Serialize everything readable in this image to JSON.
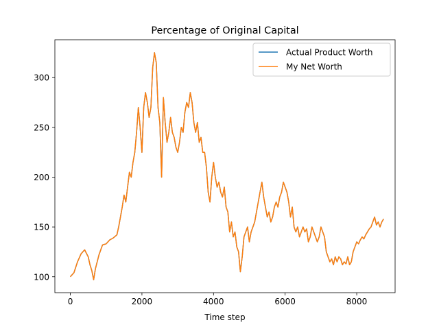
{
  "chart_data": {
    "type": "line",
    "title": "Percentage of Original Capital",
    "xlabel": "Time step",
    "ylabel": "",
    "xlim": [
      -432,
      9072
    ],
    "ylim": [
      84,
      338
    ],
    "xticks": [
      0,
      2000,
      4000,
      6000,
      8000
    ],
    "yticks": [
      100,
      150,
      200,
      250,
      300
    ],
    "grid": false,
    "legend_position": "top-right",
    "series": [
      {
        "name": "Actual Product Worth",
        "color": "#1f77b4",
        "x": [
          0,
          100,
          200,
          300,
          400,
          500,
          550,
          600,
          650,
          700,
          800,
          900,
          1000,
          1100,
          1200,
          1300,
          1350,
          1400,
          1450,
          1500,
          1550,
          1600,
          1650,
          1700,
          1750,
          1800,
          1850,
          1900,
          1950,
          2000,
          2050,
          2100,
          2150,
          2200,
          2250,
          2300,
          2350,
          2400,
          2450,
          2500,
          2550,
          2600,
          2650,
          2700,
          2750,
          2800,
          2850,
          2900,
          2950,
          3000,
          3050,
          3100,
          3150,
          3200,
          3250,
          3300,
          3350,
          3400,
          3450,
          3500,
          3550,
          3600,
          3650,
          3700,
          3750,
          3800,
          3850,
          3900,
          3950,
          4000,
          4050,
          4100,
          4150,
          4200,
          4250,
          4300,
          4350,
          4400,
          4450,
          4500,
          4550,
          4600,
          4650,
          4700,
          4750,
          4800,
          4850,
          4900,
          4950,
          5000,
          5050,
          5100,
          5150,
          5200,
          5250,
          5300,
          5350,
          5400,
          5450,
          5500,
          5550,
          5600,
          5650,
          5700,
          5750,
          5800,
          5850,
          5900,
          5950,
          6000,
          6050,
          6100,
          6150,
          6200,
          6250,
          6300,
          6350,
          6400,
          6450,
          6500,
          6550,
          6600,
          6650,
          6700,
          6750,
          6800,
          6850,
          6900,
          6950,
          7000,
          7050,
          7100,
          7150,
          7200,
          7250,
          7300,
          7350,
          7400,
          7450,
          7500,
          7550,
          7600,
          7650,
          7700,
          7750,
          7800,
          7850,
          7900,
          7950,
          8000,
          8050,
          8100,
          8150,
          8200,
          8250,
          8300,
          8350,
          8400,
          8450,
          8500,
          8550,
          8600,
          8650,
          8700,
          8750
        ],
        "values": [
          100,
          104,
          115,
          123,
          127,
          120,
          112,
          106,
          97,
          108,
          122,
          132,
          133,
          137,
          139,
          142,
          150,
          160,
          170,
          182,
          175,
          190,
          205,
          200,
          215,
          225,
          245,
          270,
          250,
          225,
          270,
          285,
          275,
          260,
          270,
          310,
          325,
          315,
          270,
          255,
          200,
          280,
          255,
          235,
          245,
          260,
          245,
          240,
          230,
          225,
          235,
          250,
          245,
          265,
          275,
          270,
          285,
          275,
          255,
          245,
          255,
          235,
          240,
          225,
          225,
          210,
          185,
          175,
          200,
          215,
          200,
          190,
          195,
          185,
          180,
          190,
          170,
          165,
          145,
          155,
          140,
          145,
          130,
          125,
          105,
          120,
          140,
          145,
          150,
          135,
          145,
          150,
          155,
          165,
          175,
          185,
          195,
          180,
          170,
          160,
          165,
          155,
          160,
          170,
          175,
          170,
          180,
          185,
          195,
          190,
          185,
          175,
          160,
          170,
          150,
          145,
          150,
          140,
          145,
          150,
          145,
          148,
          135,
          140,
          150,
          145,
          140,
          135,
          140,
          150,
          145,
          140,
          125,
          120,
          115,
          118,
          112,
          120,
          115,
          120,
          118,
          112,
          115,
          113,
          120,
          112,
          115,
          125,
          130,
          135,
          133,
          137,
          140,
          138,
          142,
          145,
          148,
          150,
          155,
          160,
          152,
          155,
          150,
          155,
          158
        ]
      },
      {
        "name": "My Net Worth",
        "color": "#ff7f0e",
        "x": [
          0,
          100,
          200,
          300,
          400,
          500,
          550,
          600,
          650,
          700,
          800,
          900,
          1000,
          1100,
          1200,
          1300,
          1350,
          1400,
          1450,
          1500,
          1550,
          1600,
          1650,
          1700,
          1750,
          1800,
          1850,
          1900,
          1950,
          2000,
          2050,
          2100,
          2150,
          2200,
          2250,
          2300,
          2350,
          2400,
          2450,
          2500,
          2550,
          2600,
          2650,
          2700,
          2750,
          2800,
          2850,
          2900,
          2950,
          3000,
          3050,
          3100,
          3150,
          3200,
          3250,
          3300,
          3350,
          3400,
          3450,
          3500,
          3550,
          3600,
          3650,
          3700,
          3750,
          3800,
          3850,
          3900,
          3950,
          4000,
          4050,
          4100,
          4150,
          4200,
          4250,
          4300,
          4350,
          4400,
          4450,
          4500,
          4550,
          4600,
          4650,
          4700,
          4750,
          4800,
          4850,
          4900,
          4950,
          5000,
          5050,
          5100,
          5150,
          5200,
          5250,
          5300,
          5350,
          5400,
          5450,
          5500,
          5550,
          5600,
          5650,
          5700,
          5750,
          5800,
          5850,
          5900,
          5950,
          6000,
          6050,
          6100,
          6150,
          6200,
          6250,
          6300,
          6350,
          6400,
          6450,
          6500,
          6550,
          6600,
          6650,
          6700,
          6750,
          6800,
          6850,
          6900,
          6950,
          7000,
          7050,
          7100,
          7150,
          7200,
          7250,
          7300,
          7350,
          7400,
          7450,
          7500,
          7550,
          7600,
          7650,
          7700,
          7750,
          7800,
          7850,
          7900,
          7950,
          8000,
          8050,
          8100,
          8150,
          8200,
          8250,
          8300,
          8350,
          8400,
          8450,
          8500,
          8550,
          8600,
          8650,
          8700,
          8750
        ],
        "values": [
          100,
          104,
          115,
          123,
          127,
          120,
          112,
          106,
          97,
          108,
          122,
          132,
          133,
          137,
          139,
          142,
          150,
          160,
          170,
          182,
          175,
          190,
          205,
          200,
          215,
          225,
          245,
          270,
          250,
          225,
          270,
          285,
          275,
          260,
          270,
          310,
          325,
          315,
          270,
          255,
          200,
          280,
          255,
          235,
          245,
          260,
          245,
          240,
          230,
          225,
          235,
          250,
          245,
          265,
          275,
          270,
          285,
          275,
          255,
          245,
          255,
          235,
          240,
          225,
          225,
          210,
          185,
          175,
          200,
          215,
          200,
          190,
          195,
          185,
          180,
          190,
          170,
          165,
          145,
          155,
          140,
          145,
          130,
          125,
          105,
          120,
          140,
          145,
          150,
          135,
          145,
          150,
          155,
          165,
          175,
          185,
          195,
          180,
          170,
          160,
          165,
          155,
          160,
          170,
          175,
          170,
          180,
          185,
          195,
          190,
          185,
          175,
          160,
          170,
          150,
          145,
          150,
          140,
          145,
          150,
          145,
          148,
          135,
          140,
          150,
          145,
          140,
          135,
          140,
          150,
          145,
          140,
          125,
          120,
          115,
          118,
          112,
          120,
          115,
          120,
          118,
          112,
          115,
          113,
          120,
          112,
          115,
          125,
          130,
          135,
          133,
          137,
          140,
          138,
          142,
          145,
          148,
          150,
          155,
          160,
          152,
          155,
          150,
          155,
          158
        ]
      }
    ]
  }
}
